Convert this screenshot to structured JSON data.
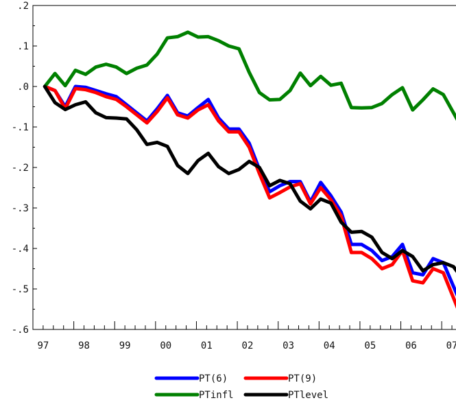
{
  "chart_data": {
    "type": "line",
    "title": "",
    "xlabel": "",
    "ylabel": "",
    "xlim": [
      1997.0,
      2007.4
    ],
    "ylim": [
      -0.6,
      0.2
    ],
    "x_ticks": [
      {
        "label": "97",
        "value": 1997.25
      },
      {
        "label": "98",
        "value": 1998.25
      },
      {
        "label": "99",
        "value": 1999.25
      },
      {
        "label": "00",
        "value": 2000.25
      },
      {
        "label": "01",
        "value": 2001.25
      },
      {
        "label": "02",
        "value": 2002.25
      },
      {
        "label": "03",
        "value": 2003.25
      },
      {
        "label": "04",
        "value": 2004.25
      },
      {
        "label": "05",
        "value": 2005.25
      },
      {
        "label": "06",
        "value": 2006.25
      },
      {
        "label": "07",
        "value": 2007.25
      }
    ],
    "y_ticks": [
      {
        "label": ".2",
        "value": 0.2
      },
      {
        "label": ".1",
        "value": 0.1
      },
      {
        "label": ".0",
        "value": 0.0
      },
      {
        "label": "-.1",
        "value": -0.1
      },
      {
        "label": "-.2",
        "value": -0.2
      },
      {
        "label": "-.3",
        "value": -0.3
      },
      {
        "label": "-.4",
        "value": -0.4
      },
      {
        "label": "-.5",
        "value": -0.5
      },
      {
        "label": "-.6",
        "value": -0.6
      }
    ],
    "legend_placement": "bottom-center",
    "series": [
      {
        "name": "PT(6)",
        "color": "#0000ff",
        "x": [
          1997.29,
          1997.54,
          1997.79,
          1998.04,
          1998.29,
          1998.54,
          1998.79,
          1999.04,
          1999.29,
          1999.54,
          1999.79,
          2000.04,
          2000.29,
          2000.54,
          2000.79,
          2001.04,
          2001.29,
          2001.54,
          2001.79,
          2002.04,
          2002.29,
          2002.54,
          2002.79,
          2003.04,
          2003.29,
          2003.54,
          2003.79,
          2004.04,
          2004.29,
          2004.54,
          2004.79,
          2005.04,
          2005.29,
          2005.54,
          2005.79,
          2006.04,
          2006.29,
          2006.54,
          2006.79,
          2007.04,
          2007.4
        ],
        "y": [
          0.0,
          -0.01,
          -0.05,
          0.0,
          -0.002,
          -0.01,
          -0.018,
          -0.025,
          -0.045,
          -0.065,
          -0.085,
          -0.055,
          -0.022,
          -0.065,
          -0.073,
          -0.052,
          -0.032,
          -0.078,
          -0.105,
          -0.105,
          -0.14,
          -0.205,
          -0.26,
          -0.245,
          -0.235,
          -0.235,
          -0.285,
          -0.237,
          -0.27,
          -0.31,
          -0.39,
          -0.39,
          -0.405,
          -0.43,
          -0.42,
          -0.39,
          -0.46,
          -0.465,
          -0.425,
          -0.435,
          -0.52
        ]
      },
      {
        "name": "PT(9)",
        "color": "#ff0000",
        "x": [
          1997.29,
          1997.54,
          1997.79,
          1998.04,
          1998.29,
          1998.54,
          1998.79,
          1999.04,
          1999.29,
          1999.54,
          1999.79,
          2000.04,
          2000.29,
          2000.54,
          2000.79,
          2001.04,
          2001.29,
          2001.54,
          2001.79,
          2002.04,
          2002.29,
          2002.54,
          2002.79,
          2003.04,
          2003.29,
          2003.54,
          2003.79,
          2004.04,
          2004.29,
          2004.54,
          2004.79,
          2005.04,
          2005.29,
          2005.54,
          2005.79,
          2006.04,
          2006.29,
          2006.54,
          2006.79,
          2007.04,
          2007.4
        ],
        "y": [
          0.0,
          -0.01,
          -0.055,
          -0.005,
          -0.008,
          -0.015,
          -0.025,
          -0.032,
          -0.05,
          -0.07,
          -0.09,
          -0.062,
          -0.028,
          -0.07,
          -0.078,
          -0.058,
          -0.045,
          -0.085,
          -0.112,
          -0.112,
          -0.15,
          -0.215,
          -0.275,
          -0.262,
          -0.248,
          -0.24,
          -0.29,
          -0.25,
          -0.28,
          -0.32,
          -0.41,
          -0.41,
          -0.425,
          -0.45,
          -0.44,
          -0.405,
          -0.48,
          -0.485,
          -0.45,
          -0.46,
          -0.55
        ]
      },
      {
        "name": "PTinfl",
        "color": "#008000",
        "x": [
          1997.29,
          1997.54,
          1997.79,
          1998.04,
          1998.29,
          1998.54,
          1998.79,
          1999.04,
          1999.29,
          1999.54,
          1999.79,
          2000.04,
          2000.29,
          2000.54,
          2000.79,
          2001.04,
          2001.29,
          2001.54,
          2001.79,
          2002.04,
          2002.29,
          2002.54,
          2002.79,
          2003.04,
          2003.29,
          2003.54,
          2003.79,
          2004.04,
          2004.29,
          2004.54,
          2004.79,
          2005.04,
          2005.29,
          2005.54,
          2005.79,
          2006.04,
          2006.29,
          2006.54,
          2006.79,
          2007.04,
          2007.4
        ],
        "y": [
          0.0,
          0.032,
          0.002,
          0.04,
          0.03,
          0.048,
          0.055,
          0.048,
          0.032,
          0.045,
          0.053,
          0.08,
          0.12,
          0.123,
          0.134,
          0.122,
          0.123,
          0.113,
          0.1,
          0.093,
          0.035,
          -0.015,
          -0.033,
          -0.032,
          -0.01,
          0.033,
          0.002,
          0.025,
          0.003,
          0.008,
          -0.052,
          -0.053,
          -0.052,
          -0.042,
          -0.02,
          -0.003,
          -0.058,
          -0.033,
          -0.006,
          -0.02,
          -0.085
        ]
      },
      {
        "name": "PTlevel",
        "color": "#000000",
        "x": [
          1997.29,
          1997.54,
          1997.79,
          1998.04,
          1998.29,
          1998.54,
          1998.79,
          1999.04,
          1999.29,
          1999.54,
          1999.79,
          2000.04,
          2000.29,
          2000.54,
          2000.79,
          2001.04,
          2001.29,
          2001.54,
          2001.79,
          2002.04,
          2002.29,
          2002.54,
          2002.79,
          2003.04,
          2003.29,
          2003.54,
          2003.79,
          2004.04,
          2004.29,
          2004.54,
          2004.79,
          2005.04,
          2005.29,
          2005.54,
          2005.79,
          2006.04,
          2006.29,
          2006.54,
          2006.79,
          2007.04,
          2007.29,
          2007.4
        ],
        "y": [
          0.0,
          -0.04,
          -0.057,
          -0.045,
          -0.038,
          -0.065,
          -0.077,
          -0.078,
          -0.08,
          -0.107,
          -0.143,
          -0.138,
          -0.148,
          -0.195,
          -0.215,
          -0.183,
          -0.165,
          -0.198,
          -0.215,
          -0.205,
          -0.185,
          -0.2,
          -0.245,
          -0.232,
          -0.24,
          -0.283,
          -0.302,
          -0.278,
          -0.288,
          -0.335,
          -0.36,
          -0.358,
          -0.372,
          -0.41,
          -0.425,
          -0.405,
          -0.42,
          -0.455,
          -0.44,
          -0.435,
          -0.445,
          -0.46
        ]
      }
    ]
  }
}
